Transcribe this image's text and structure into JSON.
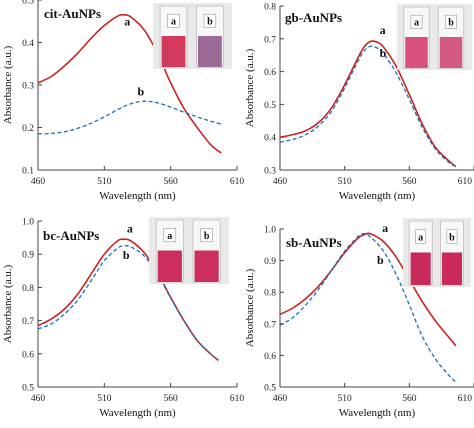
{
  "chart_data": [
    {
      "type": "line",
      "title": "cit-AuNPs",
      "xlabel": "Wavelength (nm)",
      "ylabel": "Absorbance (a.u.)",
      "xlim": [
        460,
        610
      ],
      "ylim": [
        0.1,
        0.5
      ],
      "xticks": [
        "460",
        "510",
        "560",
        "610"
      ],
      "yticks": [
        "0.1",
        "0.2",
        "0.3",
        "0.4",
        "0.5"
      ],
      "series": [
        {
          "name": "a",
          "color": "#cc2222",
          "style": "solid",
          "x": [
            460,
            470,
            480,
            490,
            500,
            510,
            520,
            525,
            530,
            540,
            550,
            560,
            570,
            580,
            590,
            598
          ],
          "y": [
            0.305,
            0.32,
            0.345,
            0.375,
            0.41,
            0.44,
            0.462,
            0.465,
            0.46,
            0.43,
            0.375,
            0.305,
            0.245,
            0.2,
            0.16,
            0.14
          ]
        },
        {
          "name": "b",
          "color": "#1f6fb0",
          "style": "dashed",
          "x": [
            460,
            470,
            480,
            490,
            500,
            510,
            520,
            530,
            540,
            550,
            560,
            570,
            580,
            590,
            598
          ],
          "y": [
            0.185,
            0.186,
            0.19,
            0.198,
            0.21,
            0.225,
            0.242,
            0.256,
            0.262,
            0.258,
            0.248,
            0.236,
            0.225,
            0.215,
            0.208
          ]
        }
      ],
      "cuvette_labels": [
        "a",
        "b"
      ],
      "cuvette_colors": [
        "#d23a5e",
        "#9c6a96"
      ]
    },
    {
      "type": "line",
      "title": "gb-AuNPs",
      "xlabel": "Wavelength (nm)",
      "ylabel": "Absorbance (a.u.)",
      "xlim": [
        460,
        610
      ],
      "ylim": [
        0.3,
        0.8
      ],
      "xticks": [
        "460",
        "510",
        "560",
        "610"
      ],
      "yticks": [
        "0.3",
        "0.4",
        "0.5",
        "0.6",
        "0.7",
        "0.8"
      ],
      "series": [
        {
          "name": "a",
          "color": "#cc2222",
          "style": "solid",
          "x": [
            460,
            470,
            480,
            490,
            500,
            510,
            520,
            525,
            530,
            535,
            540,
            550,
            560,
            570,
            580,
            590,
            596
          ],
          "y": [
            0.4,
            0.408,
            0.42,
            0.445,
            0.49,
            0.56,
            0.64,
            0.675,
            0.692,
            0.69,
            0.675,
            0.615,
            0.53,
            0.44,
            0.37,
            0.33,
            0.31
          ]
        },
        {
          "name": "b",
          "color": "#1f6fb0",
          "style": "dashed",
          "x": [
            460,
            470,
            480,
            490,
            500,
            510,
            520,
            525,
            530,
            535,
            540,
            550,
            560,
            570,
            580,
            590,
            596
          ],
          "y": [
            0.385,
            0.393,
            0.408,
            0.435,
            0.48,
            0.55,
            0.63,
            0.663,
            0.677,
            0.672,
            0.655,
            0.595,
            0.515,
            0.43,
            0.365,
            0.325,
            0.31
          ]
        }
      ],
      "cuvette_labels": [
        "a",
        "b"
      ],
      "cuvette_colors": [
        "#d9507c",
        "#d45a82"
      ]
    },
    {
      "type": "line",
      "title": "bc-AuNPs",
      "xlabel": "Wavelength (nm)",
      "ylabel": "Absorbance (a.u.)",
      "xlim": [
        460,
        610
      ],
      "ylim": [
        0.5,
        1.0
      ],
      "xticks": [
        "460",
        "510",
        "560",
        "610"
      ],
      "yticks": [
        "0.5",
        "0.6",
        "0.7",
        "0.8",
        "0.9",
        "1.0"
      ],
      "series": [
        {
          "name": "a",
          "color": "#cc2222",
          "style": "solid",
          "x": [
            460,
            470,
            480,
            490,
            500,
            510,
            520,
            525,
            530,
            540,
            550,
            560,
            570,
            580,
            590,
            596
          ],
          "y": [
            0.685,
            0.705,
            0.735,
            0.78,
            0.84,
            0.9,
            0.94,
            0.945,
            0.94,
            0.905,
            0.845,
            0.77,
            0.7,
            0.64,
            0.6,
            0.58
          ]
        },
        {
          "name": "b",
          "color": "#1f6fb0",
          "style": "dashed",
          "x": [
            460,
            470,
            480,
            490,
            500,
            510,
            520,
            525,
            530,
            540,
            550,
            560,
            570,
            580,
            590,
            596
          ],
          "y": [
            0.675,
            0.69,
            0.72,
            0.762,
            0.82,
            0.88,
            0.918,
            0.925,
            0.922,
            0.895,
            0.84,
            0.768,
            0.7,
            0.64,
            0.6,
            0.58
          ]
        }
      ],
      "cuvette_labels": [
        "a",
        "b"
      ],
      "cuvette_colors": [
        "#cc2f5e",
        "#cc2f5e"
      ]
    },
    {
      "type": "line",
      "title": "sb-AuNPs",
      "xlabel": "Wavelength (nm)",
      "ylabel": "Absorbance (a.u.)",
      "xlim": [
        460,
        610
      ],
      "ylim": [
        0.5,
        1.0
      ],
      "xticks": [
        "460",
        "510",
        "560",
        "610"
      ],
      "yticks": [
        "0.5",
        "0.6",
        "0.7",
        "0.8",
        "0.9",
        "1.0"
      ],
      "series": [
        {
          "name": "a",
          "color": "#cc2222",
          "style": "solid",
          "x": [
            460,
            470,
            480,
            490,
            500,
            510,
            520,
            525,
            530,
            540,
            550,
            560,
            570,
            580,
            590,
            596
          ],
          "y": [
            0.73,
            0.75,
            0.78,
            0.82,
            0.87,
            0.925,
            0.97,
            0.982,
            0.985,
            0.96,
            0.91,
            0.84,
            0.77,
            0.71,
            0.66,
            0.63
          ]
        },
        {
          "name": "b",
          "color": "#1f6fb0",
          "style": "dashed",
          "x": [
            460,
            470,
            480,
            490,
            500,
            510,
            520,
            525,
            530,
            540,
            550,
            560,
            570,
            580,
            590,
            596
          ],
          "y": [
            0.695,
            0.72,
            0.76,
            0.81,
            0.87,
            0.93,
            0.975,
            0.985,
            0.975,
            0.93,
            0.855,
            0.76,
            0.66,
            0.59,
            0.54,
            0.515
          ]
        }
      ],
      "cuvette_labels": [
        "a",
        "b"
      ],
      "cuvette_colors": [
        "#c92a5a",
        "#c92a5a"
      ]
    }
  ]
}
